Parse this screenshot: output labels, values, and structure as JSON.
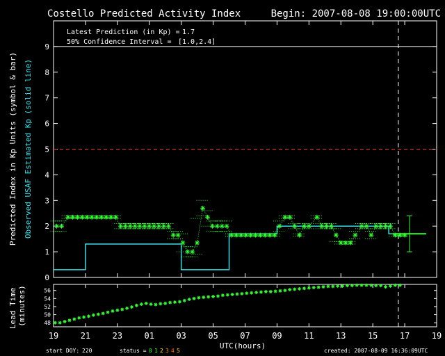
{
  "colors": {
    "background": "#000000",
    "axes": "#ffffff",
    "points": "#33ff33",
    "observed": "#33e0e8",
    "storm_line": "#ff3333",
    "now_line": "#ffffff",
    "status_1": "#33ff33",
    "status_2": "#ffff00",
    "status_3": "#ff9900",
    "status_4": "#ff6600",
    "status_5": "#ffcc33"
  },
  "header": {
    "title": "Costello Predicted Activity Index",
    "begin": "Begin: 2007-08-08 19:00:00UTC"
  },
  "summary": {
    "latest_label": "Latest Prediction (in Kp) =",
    "latest_value": "1.7",
    "ci_label": "50% Confidence Interval  =",
    "ci_value": "[1.0,2.4]"
  },
  "footer": {
    "start_doy_label": "start DOY:",
    "start_doy": "220",
    "status_label": "status =",
    "status_codes": [
      "0",
      "1",
      "2",
      "3",
      "4",
      "5"
    ],
    "created": "created: 2007-08-09 16:36:09UTC"
  },
  "chart_data": [
    {
      "type": "scatter",
      "ylabel_primary": "Predicted Index in Kp Units (symbol & bar)",
      "ylabel_secondary": "Observed USAF Estimated Kp (solid line)",
      "xlabel": "UTC(hours)",
      "xlim": [
        19,
        43
      ],
      "ylim": [
        0,
        10
      ],
      "x_ticks": [
        19,
        21,
        23,
        25,
        27,
        29,
        31,
        33,
        35,
        37,
        39,
        41,
        43
      ],
      "x_tick_labels": [
        "19",
        "21",
        "23",
        "01",
        "03",
        "05",
        "07",
        "09",
        "11",
        "13",
        "15",
        "17",
        "19"
      ],
      "y_ticks": [
        0,
        1,
        2,
        3,
        4,
        5,
        6,
        7,
        8,
        9
      ],
      "storm_threshold": 5,
      "current_time": 40.6,
      "latest_prediction": {
        "x": 41.3,
        "y": 1.7,
        "low": 1.0,
        "high": 2.4
      },
      "predicted": [
        {
          "x": 19.2,
          "y": 2.0,
          "lo": 1.8,
          "hi": 2.2
        },
        {
          "x": 19.5,
          "y": 2.0,
          "lo": 1.8,
          "hi": 2.2
        },
        {
          "x": 19.9,
          "y": 2.35,
          "lo": 2.3,
          "hi": 2.4
        },
        {
          "x": 20.2,
          "y": 2.35,
          "lo": 2.3,
          "hi": 2.4
        },
        {
          "x": 20.5,
          "y": 2.35,
          "lo": 2.3,
          "hi": 2.4
        },
        {
          "x": 20.8,
          "y": 2.35,
          "lo": 2.3,
          "hi": 2.4
        },
        {
          "x": 21.1,
          "y": 2.35,
          "lo": 2.3,
          "hi": 2.4
        },
        {
          "x": 21.4,
          "y": 2.35,
          "lo": 2.3,
          "hi": 2.4
        },
        {
          "x": 21.7,
          "y": 2.35,
          "lo": 2.3,
          "hi": 2.4
        },
        {
          "x": 22.0,
          "y": 2.35,
          "lo": 2.3,
          "hi": 2.4
        },
        {
          "x": 22.3,
          "y": 2.35,
          "lo": 2.3,
          "hi": 2.4
        },
        {
          "x": 22.6,
          "y": 2.35,
          "lo": 2.3,
          "hi": 2.4
        },
        {
          "x": 22.9,
          "y": 2.35,
          "lo": 2.3,
          "hi": 2.4
        },
        {
          "x": 23.2,
          "y": 2.0,
          "lo": 1.9,
          "hi": 2.1
        },
        {
          "x": 23.5,
          "y": 2.0,
          "lo": 1.9,
          "hi": 2.1
        },
        {
          "x": 23.8,
          "y": 2.0,
          "lo": 1.9,
          "hi": 2.1
        },
        {
          "x": 24.1,
          "y": 2.0,
          "lo": 1.9,
          "hi": 2.1
        },
        {
          "x": 24.4,
          "y": 2.0,
          "lo": 1.9,
          "hi": 2.1
        },
        {
          "x": 24.7,
          "y": 2.0,
          "lo": 1.9,
          "hi": 2.1
        },
        {
          "x": 25.0,
          "y": 2.0,
          "lo": 1.9,
          "hi": 2.1
        },
        {
          "x": 25.3,
          "y": 2.0,
          "lo": 1.9,
          "hi": 2.1
        },
        {
          "x": 25.6,
          "y": 2.0,
          "lo": 1.9,
          "hi": 2.1
        },
        {
          "x": 25.9,
          "y": 2.0,
          "lo": 1.9,
          "hi": 2.1
        },
        {
          "x": 26.2,
          "y": 2.0,
          "lo": 1.9,
          "hi": 2.1
        },
        {
          "x": 26.5,
          "y": 1.65,
          "lo": 1.5,
          "hi": 1.8
        },
        {
          "x": 26.8,
          "y": 1.65,
          "lo": 1.5,
          "hi": 1.8
        },
        {
          "x": 27.1,
          "y": 1.35,
          "lo": 1.0,
          "hi": 1.7
        },
        {
          "x": 27.4,
          "y": 1.0,
          "lo": 0.8,
          "hi": 1.2
        },
        {
          "x": 27.7,
          "y": 1.0,
          "lo": 0.8,
          "hi": 1.2
        },
        {
          "x": 28.0,
          "y": 1.35,
          "lo": 0.9,
          "hi": 2.3
        },
        {
          "x": 28.35,
          "y": 2.7,
          "lo": 2.4,
          "hi": 3.0
        },
        {
          "x": 28.65,
          "y": 2.35,
          "lo": 2.0,
          "hi": 2.6
        },
        {
          "x": 28.95,
          "y": 2.0,
          "lo": 1.8,
          "hi": 2.2
        },
        {
          "x": 29.25,
          "y": 2.0,
          "lo": 1.8,
          "hi": 2.2
        },
        {
          "x": 29.55,
          "y": 2.0,
          "lo": 1.8,
          "hi": 2.2
        },
        {
          "x": 29.85,
          "y": 2.0,
          "lo": 1.8,
          "hi": 2.2
        },
        {
          "x": 30.15,
          "y": 1.65,
          "lo": 1.6,
          "hi": 1.7
        },
        {
          "x": 30.45,
          "y": 1.65,
          "lo": 1.6,
          "hi": 1.7
        },
        {
          "x": 30.75,
          "y": 1.65,
          "lo": 1.6,
          "hi": 1.7
        },
        {
          "x": 31.05,
          "y": 1.65,
          "lo": 1.6,
          "hi": 1.7
        },
        {
          "x": 31.35,
          "y": 1.65,
          "lo": 1.6,
          "hi": 1.7
        },
        {
          "x": 31.65,
          "y": 1.65,
          "lo": 1.6,
          "hi": 1.7
        },
        {
          "x": 31.95,
          "y": 1.65,
          "lo": 1.6,
          "hi": 1.7
        },
        {
          "x": 32.25,
          "y": 1.65,
          "lo": 1.6,
          "hi": 1.7
        },
        {
          "x": 32.55,
          "y": 1.65,
          "lo": 1.6,
          "hi": 1.7
        },
        {
          "x": 32.85,
          "y": 1.65,
          "lo": 1.6,
          "hi": 1.7
        },
        {
          "x": 33.15,
          "y": 2.0,
          "lo": 1.8,
          "hi": 2.2
        },
        {
          "x": 33.5,
          "y": 2.35,
          "lo": 2.3,
          "hi": 2.4
        },
        {
          "x": 33.8,
          "y": 2.35,
          "lo": 2.3,
          "hi": 2.4
        },
        {
          "x": 34.1,
          "y": 2.0,
          "lo": 1.9,
          "hi": 2.1
        },
        {
          "x": 34.4,
          "y": 1.65,
          "lo": 1.6,
          "hi": 1.7
        },
        {
          "x": 34.7,
          "y": 2.0,
          "lo": 1.9,
          "hi": 2.1
        },
        {
          "x": 35.0,
          "y": 2.0,
          "lo": 1.9,
          "hi": 2.1
        },
        {
          "x": 35.5,
          "y": 2.35,
          "lo": 2.3,
          "hi": 2.4
        },
        {
          "x": 35.8,
          "y": 2.0,
          "lo": 1.9,
          "hi": 2.1
        },
        {
          "x": 36.1,
          "y": 2.0,
          "lo": 1.9,
          "hi": 2.1
        },
        {
          "x": 36.4,
          "y": 2.0,
          "lo": 1.9,
          "hi": 2.1
        },
        {
          "x": 36.7,
          "y": 1.65,
          "lo": 1.4,
          "hi": 1.9
        },
        {
          "x": 37.0,
          "y": 1.35,
          "lo": 1.3,
          "hi": 1.4
        },
        {
          "x": 37.3,
          "y": 1.35,
          "lo": 1.3,
          "hi": 1.4
        },
        {
          "x": 37.6,
          "y": 1.35,
          "lo": 1.3,
          "hi": 1.4
        },
        {
          "x": 37.9,
          "y": 1.65,
          "lo": 1.5,
          "hi": 1.8
        },
        {
          "x": 38.3,
          "y": 2.0,
          "lo": 1.9,
          "hi": 2.1
        },
        {
          "x": 38.6,
          "y": 2.0,
          "lo": 1.9,
          "hi": 2.1
        },
        {
          "x": 38.9,
          "y": 1.65,
          "lo": 1.5,
          "hi": 1.8
        },
        {
          "x": 39.2,
          "y": 2.0,
          "lo": 1.9,
          "hi": 2.1
        },
        {
          "x": 39.5,
          "y": 2.0,
          "lo": 1.9,
          "hi": 2.1
        },
        {
          "x": 39.8,
          "y": 2.0,
          "lo": 1.9,
          "hi": 2.1
        },
        {
          "x": 40.1,
          "y": 2.0,
          "lo": 1.9,
          "hi": 2.1
        },
        {
          "x": 40.4,
          "y": 1.65,
          "lo": 1.6,
          "hi": 1.7
        },
        {
          "x": 40.7,
          "y": 1.65,
          "lo": 1.6,
          "hi": 1.7
        },
        {
          "x": 41.0,
          "y": 1.65,
          "lo": 1.6,
          "hi": 1.7
        }
      ],
      "observed_kp": [
        {
          "x": 19.0,
          "y": 0.3
        },
        {
          "x": 21.0,
          "y": 1.3
        },
        {
          "x": 27.0,
          "y": 0.3
        },
        {
          "x": 30.0,
          "y": 1.7
        },
        {
          "x": 33.0,
          "y": 2.0
        },
        {
          "x": 36.0,
          "y": 2.0
        },
        {
          "x": 40.0,
          "y": 1.7
        },
        {
          "x": 42.0,
          "y": 1.7
        }
      ]
    },
    {
      "type": "scatter",
      "ylabel": "Lead Time (minutes)",
      "ylim": [
        47,
        57.5
      ],
      "y_ticks": [
        48,
        50,
        52,
        54,
        56
      ],
      "x": [
        19.1,
        19.4,
        19.7,
        20.0,
        20.3,
        20.6,
        20.9,
        21.2,
        21.5,
        21.8,
        22.1,
        22.4,
        22.7,
        23.0,
        23.3,
        23.6,
        23.9,
        24.2,
        24.5,
        24.8,
        25.1,
        25.4,
        25.7,
        26.0,
        26.3,
        26.6,
        26.9,
        27.2,
        27.5,
        27.8,
        28.1,
        28.4,
        28.7,
        29.0,
        29.3,
        29.6,
        29.9,
        30.2,
        30.5,
        30.8,
        31.1,
        31.4,
        31.7,
        32.0,
        32.3,
        32.6,
        32.9,
        33.2,
        33.5,
        33.8,
        34.1,
        34.4,
        34.7,
        35.0,
        35.3,
        35.6,
        35.9,
        36.2,
        36.5,
        36.8,
        37.1,
        37.4,
        37.7,
        38.0,
        38.3,
        38.6,
        38.9,
        39.2,
        39.5,
        39.8,
        40.1,
        40.4,
        40.7
      ],
      "values": [
        48.0,
        48.0,
        48.3,
        48.6,
        48.9,
        49.2,
        49.4,
        49.6,
        49.9,
        50.1,
        50.3,
        50.6,
        50.9,
        51.1,
        51.3,
        51.6,
        51.9,
        52.3,
        52.6,
        52.8,
        52.6,
        52.5,
        52.7,
        52.8,
        53.0,
        53.1,
        53.2,
        53.5,
        53.8,
        54.0,
        54.2,
        54.3,
        54.4,
        54.5,
        54.6,
        54.8,
        54.9,
        55.0,
        55.1,
        55.2,
        55.3,
        55.4,
        55.5,
        55.6,
        55.7,
        55.7,
        55.8,
        55.9,
        56.0,
        56.2,
        56.3,
        56.4,
        56.5,
        56.6,
        56.7,
        56.8,
        56.9,
        57.0,
        57.0,
        57.1,
        57.1,
        57.2,
        57.2,
        57.3,
        57.3,
        57.3,
        57.3,
        57.2,
        57.2,
        56.9,
        57.1,
        57.3,
        57.3
      ]
    }
  ]
}
